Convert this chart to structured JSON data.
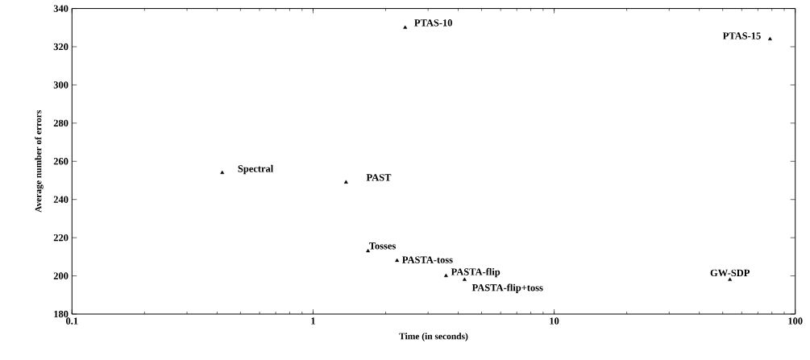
{
  "chart_data": {
    "type": "scatter",
    "xlabel": "Time (in seconds)",
    "ylabel": "Average number of errors",
    "log": "x",
    "xlim": [
      0.1,
      100
    ],
    "ylim": [
      180,
      340
    ],
    "xticks": [
      0.1,
      1,
      10,
      100
    ],
    "yticks": [
      180,
      200,
      220,
      240,
      260,
      280,
      300,
      320,
      340
    ],
    "marker": "triangle",
    "series": [
      {
        "color": "#000000",
        "x": [
          0.42,
          1.37,
          2.41,
          78.6,
          1.69,
          2.23,
          3.56,
          4.25,
          53.6
        ],
        "values": [
          254,
          249,
          330,
          324,
          213,
          208,
          200,
          198,
          198
        ]
      }
    ],
    "annotations": [
      {
        "text": "Spectral",
        "x": 0.42,
        "y": 254
      },
      {
        "text": "PAST",
        "x": 1.37,
        "y": 249
      },
      {
        "text": "PTAS-10",
        "x": 2.41,
        "y": 330
      },
      {
        "text": "PTAS-15",
        "x": 78.6,
        "y": 324
      },
      {
        "text": "Tosses",
        "x": 1.69,
        "y": 213
      },
      {
        "text": "PASTA-toss",
        "x": 2.23,
        "y": 208
      },
      {
        "text": "PASTA-flip",
        "x": 3.56,
        "y": 200
      },
      {
        "text": "PASTA-flip+toss",
        "x": 4.25,
        "y": 198
      },
      {
        "text": "GW-SDP",
        "x": 53.6,
        "y": 198
      }
    ]
  }
}
